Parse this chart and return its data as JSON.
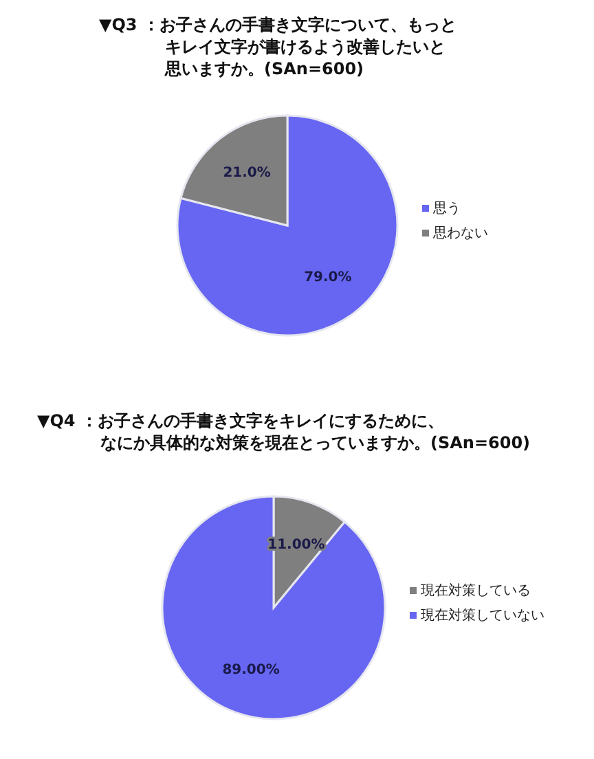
{
  "chart_data": [
    {
      "type": "pie",
      "title": "▼Q3 ：お子さんの手書き文字について、もっとキレイ文字が書けるよう改善したいと思いますか。(SAn=600)",
      "categories": [
        "思う",
        "思わない"
      ],
      "values": [
        79,
        21
      ],
      "colors": [
        "#6666f2",
        "#7f7f7f"
      ],
      "value_labels": [
        "79.0%",
        "21.0%"
      ],
      "legend": "right"
    },
    {
      "type": "pie",
      "title": "▼Q4 ：お子さんの手書き文字をキレイにするために、なにか具体的な対策を現在とっていますか。(SAn=600)",
      "categories": [
        "現在対策している",
        "現在対策していない"
      ],
      "values": [
        11,
        89
      ],
      "colors": [
        "#7f7f7f",
        "#6666f2"
      ],
      "value_labels": [
        "11.00%",
        "89.00%"
      ],
      "legend": "right"
    }
  ]
}
